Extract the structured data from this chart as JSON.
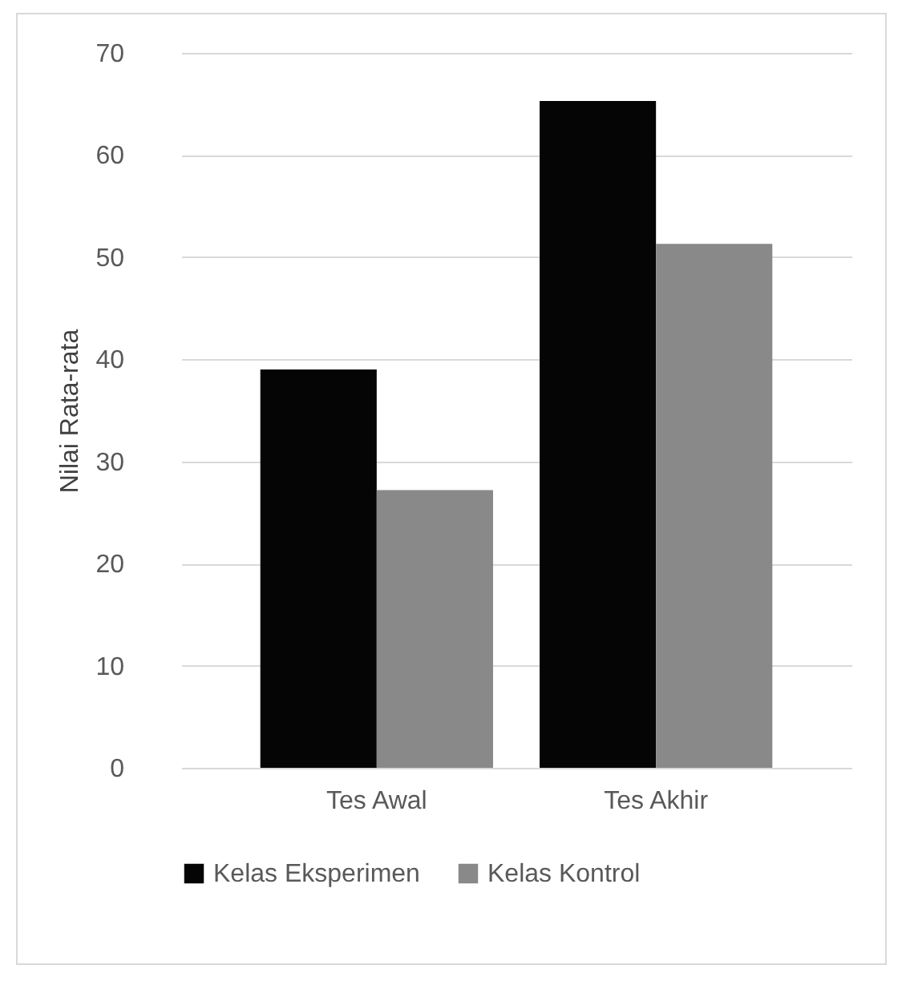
{
  "chart_data": {
    "type": "bar",
    "ylabel": "Nilai Rata-rata",
    "categories": [
      "Tes Awal",
      "Tes Akhir"
    ],
    "series": [
      {
        "name": "Kelas Eksperimen",
        "color": "#050505",
        "values": [
          39.0,
          65.3
        ]
      },
      {
        "name": "Kelas Kontrol",
        "color": "#898989",
        "values": [
          27.2,
          51.3
        ]
      }
    ],
    "ylim": [
      0,
      70
    ],
    "yticks": [
      0,
      10,
      20,
      30,
      40,
      50,
      60,
      70
    ],
    "grid": "y",
    "legend": "bottom"
  }
}
